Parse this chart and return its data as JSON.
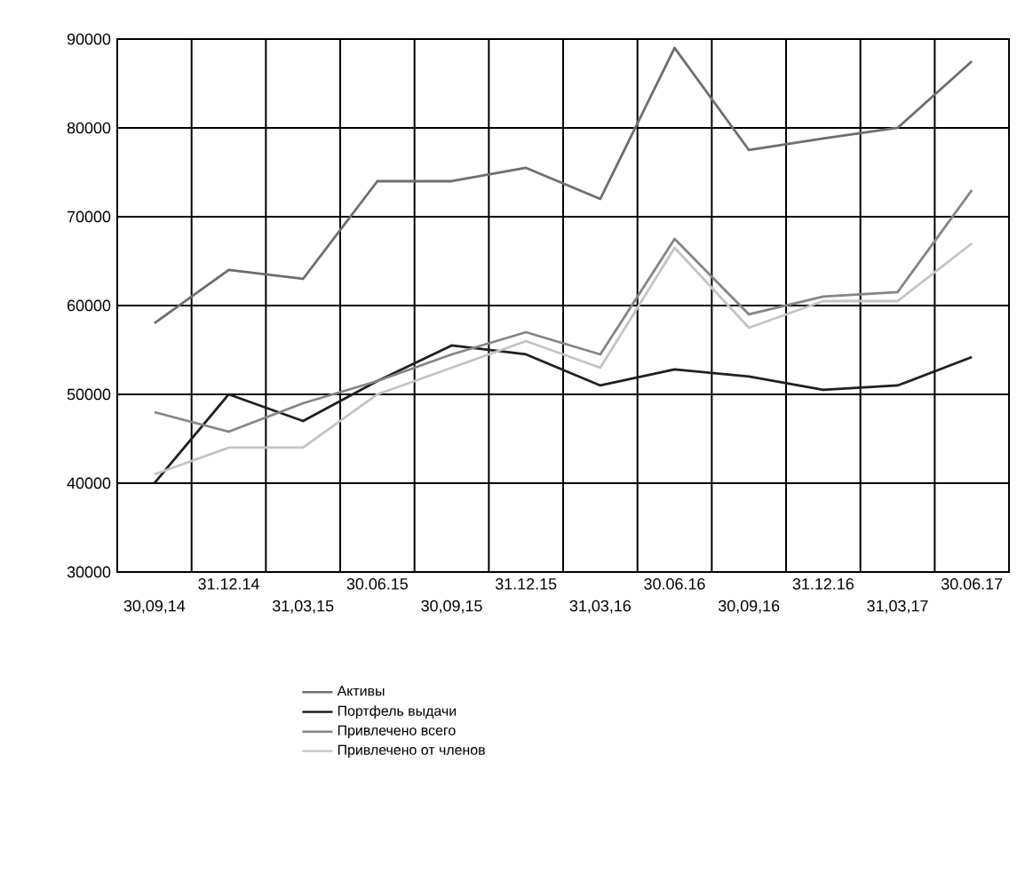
{
  "chart_data": {
    "type": "line",
    "categories": [
      "30,09,14",
      "31.12.14",
      "31,03,15",
      "30.06.15",
      "30,09,15",
      "31.12.15",
      "31,03,16",
      "30.06.16",
      "30,09,16",
      "31.12.16",
      "31,03,17",
      "30.06.17"
    ],
    "series": [
      {
        "name": "Активы",
        "color": "#6e6e6e",
        "values": [
          58000,
          64000,
          63000,
          74000,
          74000,
          75500,
          72000,
          89000,
          77500,
          78800,
          80000,
          87500
        ]
      },
      {
        "name": "Портфель выдачи",
        "color": "#202020",
        "values": [
          40000,
          50000,
          47000,
          51500,
          55500,
          54500,
          51000,
          52800,
          52000,
          50500,
          51000,
          54200
        ]
      },
      {
        "name": "Привлечено всего",
        "color": "#858585",
        "values": [
          48000,
          45800,
          49000,
          51500,
          54500,
          57000,
          54500,
          67500,
          59000,
          61000,
          61500,
          73000
        ]
      },
      {
        "name": "Привлечено от членов",
        "color": "#c4c4c4",
        "values": [
          41000,
          44000,
          44000,
          50000,
          53000,
          56000,
          53000,
          66500,
          57500,
          60500,
          60500,
          67000
        ]
      }
    ],
    "ylim": [
      30000,
      90000
    ],
    "yticks": [
      30000,
      40000,
      50000,
      60000,
      70000,
      80000,
      90000
    ],
    "grid": true,
    "legend": "bottom",
    "marker": "none",
    "line_style": "solid"
  }
}
